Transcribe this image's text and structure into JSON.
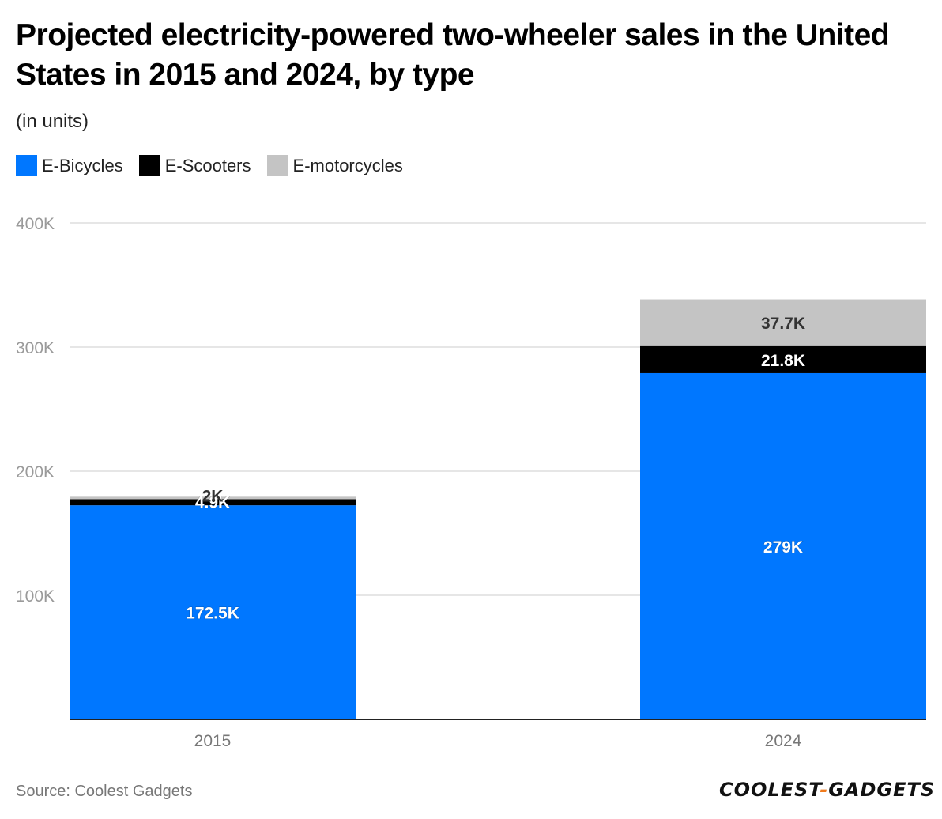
{
  "header": {
    "title": "Projected electricity-powered two-wheeler sales in the United States in 2015 and 2024, by type",
    "subtitle": "(in units)"
  },
  "colors": {
    "e_bicycles": "#0077ff",
    "e_scooters": "#000000",
    "e_motorcycles": "#c4c4c4",
    "grid": "#dddddd",
    "axis_text": "#888888"
  },
  "chart_data": {
    "type": "bar",
    "stacked": true,
    "title": "Projected electricity-powered two-wheeler sales in the United States in 2015 and 2024, by type",
    "subtitle": "(in units)",
    "categories": [
      "2015",
      "2024"
    ],
    "series": [
      {
        "name": "E-Bicycles",
        "values": [
          172500,
          279000
        ],
        "labels": [
          "172.5K",
          "279K"
        ],
        "color": "#0077ff",
        "label_color": "#ffffff"
      },
      {
        "name": "E-Scooters",
        "values": [
          4900,
          21800
        ],
        "labels": [
          "4.9K",
          "21.8K"
        ],
        "color": "#000000",
        "label_color": "#ffffff"
      },
      {
        "name": "E-motorcycles",
        "values": [
          2000,
          37700
        ],
        "labels": [
          "2K",
          "37.7K"
        ],
        "color": "#c4c4c4",
        "label_color": "#333333"
      }
    ],
    "ylim": [
      0,
      400000
    ],
    "yticks": [
      100000,
      200000,
      300000,
      400000
    ],
    "ytick_labels": [
      "100K",
      "200K",
      "300K",
      "400K"
    ],
    "xlabel": "",
    "ylabel": "",
    "grid": true,
    "legend_position": "top-left"
  },
  "footer": {
    "source": "Source: Coolest Gadgets",
    "logo_part1": "COOLEST",
    "logo_dash": "-",
    "logo_part2": "GADGETS"
  }
}
